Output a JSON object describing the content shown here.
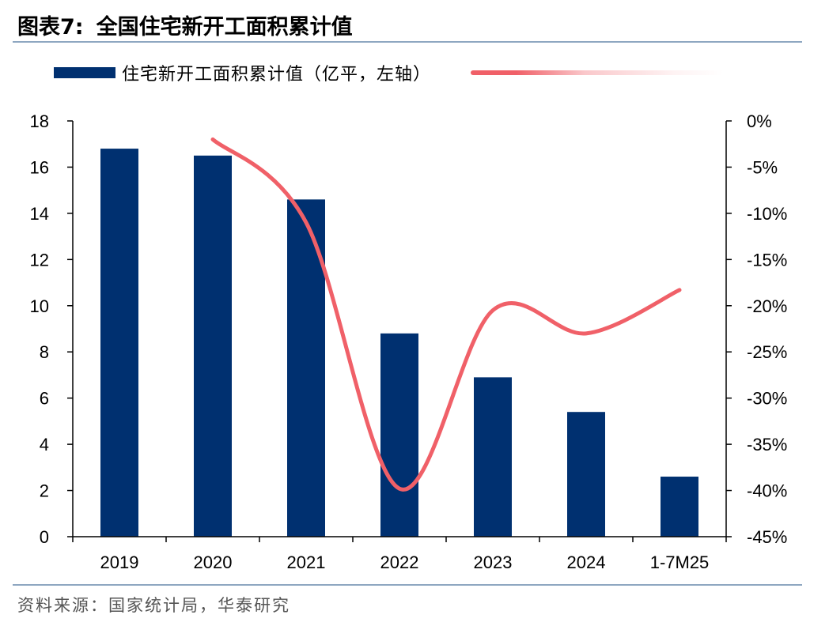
{
  "title": {
    "figure_no": "图表7:",
    "text": "全国住宅新开工面积累计值"
  },
  "legend": {
    "bar_label": "住宅新开工面积累计值（亿平，左轴）"
  },
  "source": "资料来源：国家统计局，华泰研究",
  "colors": {
    "bar": "#003070",
    "line": "#f06068",
    "rule": "#8ea7c1"
  },
  "chart_data": {
    "type": "bar",
    "categories": [
      "2019",
      "2020",
      "2021",
      "2022",
      "2023",
      "2024",
      "1-7M25"
    ],
    "series": [
      {
        "name": "住宅新开工面积累计值（亿平，左轴）",
        "axis": "left",
        "type": "bar",
        "values": [
          16.8,
          16.5,
          14.6,
          8.8,
          6.9,
          5.4,
          2.6
        ]
      },
      {
        "axis": "right",
        "type": "line",
        "unit": "%",
        "values": [
          null,
          -2.0,
          -11.0,
          -39.8,
          -20.5,
          -23.0,
          -18.3
        ]
      }
    ],
    "y_left": {
      "min": 0,
      "max": 18,
      "step": 2,
      "tick_labels": [
        "0",
        "2",
        "4",
        "6",
        "8",
        "10",
        "12",
        "14",
        "16",
        "18"
      ]
    },
    "y_right": {
      "min": -45,
      "max": 0,
      "step": 5,
      "tick_labels": [
        "-45%",
        "-40%",
        "-35%",
        "-30%",
        "-25%",
        "-20%",
        "-15%",
        "-10%",
        "-5%",
        "0%"
      ]
    },
    "grid": false,
    "legend_position": "top"
  }
}
